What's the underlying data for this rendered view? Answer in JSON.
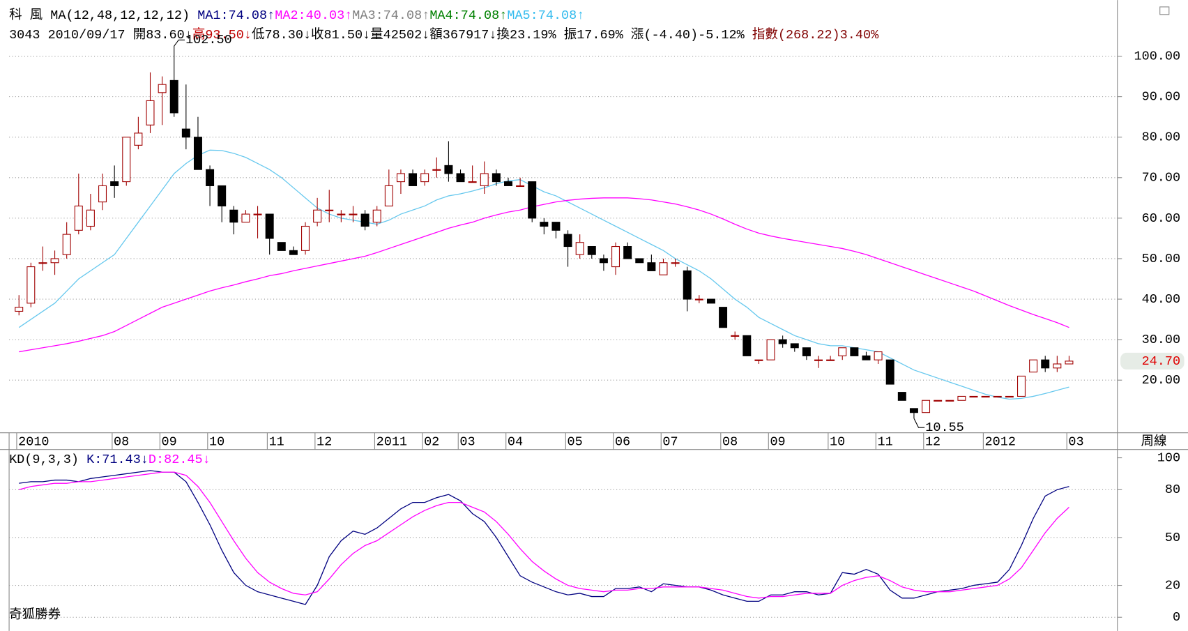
{
  "header": {
    "lines": [
      [
        {
          "text": "科  風 ",
          "color": "#000000"
        },
        {
          "text": "MA(12,48,12,12,12) ",
          "color": "#000000"
        },
        {
          "text": "MA1:74.08↑",
          "color": "#000080"
        },
        {
          "text": "MA2:40.03↑",
          "color": "#ff00ff"
        },
        {
          "text": "MA3:74.08↑",
          "color": "#808080"
        },
        {
          "text": "MA4:74.08↑",
          "color": "#008000"
        },
        {
          "text": "MA5:74.08↑",
          "color": "#33bbee"
        }
      ],
      [
        {
          "text": "3043 2010/09/17 開83.60↓",
          "color": "#000000"
        },
        {
          "text": "高93.50↓",
          "color": "#c00000"
        },
        {
          "text": "低78.30↓收81.50↓量42502↓額367917↓換23.19% 振17.69% 漲(-4.40)-5.12% ",
          "color": "#000000"
        },
        {
          "text": "指數(268.22)3.40%",
          "color": "#800000"
        }
      ]
    ]
  },
  "footer": "奇狐勝券",
  "chart_data": [
    {
      "type": "candlestick",
      "period_label": "周線",
      "up_color": "#a00000",
      "down_color": "#000000",
      "grid": true,
      "categories": [
        "2010",
        null,
        null,
        null,
        null,
        null,
        null,
        null,
        "08",
        null,
        null,
        null,
        "09",
        null,
        null,
        null,
        "10",
        null,
        null,
        null,
        null,
        "11",
        null,
        null,
        null,
        "12",
        null,
        null,
        null,
        null,
        "2011",
        null,
        null,
        null,
        "02",
        null,
        null,
        "03",
        null,
        null,
        null,
        "04",
        null,
        null,
        null,
        null,
        "05",
        null,
        null,
        null,
        "06",
        null,
        null,
        null,
        "07",
        null,
        null,
        null,
        null,
        "08",
        null,
        null,
        null,
        "09",
        null,
        null,
        null,
        null,
        "10",
        null,
        null,
        null,
        "11",
        null,
        null,
        null,
        "12",
        null,
        null,
        null,
        null,
        "2012",
        null,
        null,
        null,
        null,
        null,
        null,
        "03"
      ],
      "open": [
        37,
        39,
        49,
        49,
        51,
        57,
        58,
        64,
        69,
        69,
        78,
        83,
        91,
        94,
        82,
        80,
        72,
        68,
        62,
        59,
        61,
        61,
        54,
        52,
        52,
        59,
        62,
        61,
        61,
        61,
        59,
        63,
        69,
        71,
        69,
        72,
        73,
        71,
        69,
        68,
        71,
        69,
        68,
        69,
        59,
        59,
        56,
        51,
        53,
        50,
        48,
        53,
        50,
        49,
        46,
        49,
        47,
        40,
        40,
        38,
        31,
        31,
        25,
        25,
        30,
        29,
        28,
        25,
        25,
        26,
        28,
        26,
        25,
        25,
        17,
        13,
        12,
        15,
        15,
        15,
        16,
        16,
        16,
        16,
        16,
        22,
        25,
        23,
        24
      ],
      "high": [
        41,
        49,
        53,
        52,
        59,
        71,
        66,
        71,
        73,
        80,
        85,
        96,
        95,
        102.5,
        93,
        85,
        73,
        68,
        63,
        62,
        63,
        61,
        54,
        53,
        59,
        65,
        67,
        62,
        63,
        62,
        63,
        72,
        72,
        72,
        72,
        75,
        79,
        72,
        73,
        74,
        72,
        70,
        70,
        69,
        60,
        59,
        57,
        56,
        53,
        51,
        54,
        54,
        50,
        51,
        50,
        50,
        48,
        41,
        40,
        38,
        32,
        31,
        25,
        30,
        31,
        29,
        28,
        26,
        26,
        28,
        28,
        27,
        27,
        25,
        17,
        13,
        15,
        15,
        15,
        16,
        16,
        16,
        16,
        16,
        21,
        25,
        26,
        26,
        26
      ],
      "low": [
        36,
        38,
        47,
        46,
        50,
        56,
        57,
        62,
        65,
        68,
        77,
        81,
        83,
        85,
        77,
        72,
        63,
        59,
        56,
        59,
        55,
        51,
        52,
        51,
        51,
        58,
        59,
        59,
        59,
        57,
        58,
        63,
        66,
        68,
        68,
        70,
        69,
        69,
        69,
        66,
        68,
        68,
        68,
        59,
        56,
        55,
        48,
        50,
        50,
        47,
        46,
        50,
        49,
        47,
        46,
        48,
        37,
        39,
        39,
        33,
        30,
        26,
        24,
        25,
        28,
        27,
        25,
        23,
        25,
        25,
        26,
        25,
        24,
        19,
        15,
        10.55,
        12,
        15,
        15,
        15,
        16,
        16,
        16,
        16,
        16,
        22,
        22,
        22,
        24
      ],
      "close": [
        38,
        48,
        49,
        50,
        56,
        63,
        62,
        68,
        68,
        80,
        81,
        89,
        93,
        86,
        80,
        72,
        68,
        63,
        59,
        61,
        61,
        55,
        52,
        51,
        58,
        62,
        62,
        61,
        61,
        58,
        62,
        68,
        71,
        68,
        71,
        72,
        71,
        69,
        69,
        71,
        69,
        68,
        68,
        60,
        58,
        57,
        53,
        54,
        51,
        49,
        53,
        50,
        49,
        47,
        49,
        49,
        40,
        40,
        39,
        33,
        31,
        26,
        25,
        30,
        29,
        28,
        26,
        25,
        25,
        28,
        26,
        25,
        27,
        19,
        15,
        12,
        15,
        15,
        15,
        16,
        16,
        16,
        16,
        16,
        21,
        25,
        23,
        24,
        24.7
      ],
      "series": [
        {
          "color": "#66c8ee",
          "values": [
            33,
            35,
            37,
            39,
            42,
            45,
            47,
            49,
            51,
            55,
            59,
            63,
            67,
            71,
            73.5,
            75.5,
            76.8,
            76.7,
            76,
            75,
            73.5,
            72,
            70,
            67.5,
            65,
            62.5,
            61,
            60,
            59.5,
            59,
            58.5,
            59.5,
            61,
            62,
            63,
            64.5,
            65.5,
            66,
            66.7,
            67.5,
            68.5,
            69.2,
            69.5,
            68,
            66.5,
            65.5,
            64,
            62.5,
            61,
            59.5,
            58,
            56.5,
            55,
            53.5,
            52,
            50,
            48.5,
            47,
            45,
            42.5,
            40,
            38,
            35.5,
            34,
            32.5,
            31,
            30,
            29,
            28.5,
            28.5,
            28,
            27.5,
            27,
            25.5,
            24,
            22.5,
            21.5,
            20.5,
            19.5,
            18.5,
            17.5,
            16.5,
            15.8,
            15.3,
            15.5,
            16,
            16.7,
            17.5,
            18.3
          ]
        },
        {
          "color": "#ff00ff",
          "values": [
            27,
            27.5,
            28,
            28.5,
            29,
            29.6,
            30.3,
            31,
            32,
            33.5,
            35,
            36.5,
            38,
            39,
            40,
            41,
            42,
            42.8,
            43.5,
            44.3,
            45,
            45.8,
            46.3,
            47,
            47.6,
            48.2,
            48.8,
            49.4,
            50,
            50.6,
            51.5,
            52.5,
            53.5,
            54.5,
            55.5,
            56.5,
            57.5,
            58.3,
            59,
            60,
            60.8,
            61.5,
            62,
            62.8,
            63.4,
            64,
            64.4,
            64.7,
            64.9,
            65,
            65,
            65,
            64.8,
            64.5,
            64,
            63.5,
            62.8,
            62,
            61,
            59.8,
            58.5,
            57.3,
            56.3,
            55.6,
            55,
            54.5,
            54,
            53.5,
            53,
            52.5,
            51.8,
            51,
            50,
            49,
            48,
            47,
            46,
            45,
            44,
            43,
            42,
            40.8,
            39.6,
            38.4,
            37.3,
            36.2,
            35.2,
            34.2,
            33
          ]
        }
      ],
      "annotations": [
        {
          "index": 13,
          "value": 102.5,
          "label": "102.50"
        },
        {
          "index": 75,
          "value": 10.55,
          "label": "10.55"
        }
      ],
      "last_price": {
        "value": 24.7,
        "label": "24.70"
      },
      "ylim": [
        7,
        111.6
      ],
      "yticks": [
        {
          "value": 20,
          "label": "20.00"
        },
        {
          "value": 30,
          "label": "30.00"
        },
        {
          "value": 40,
          "label": "40.00"
        },
        {
          "value": 50,
          "label": "50.00"
        },
        {
          "value": 60,
          "label": "60.00"
        },
        {
          "value": 70,
          "label": "70.00"
        },
        {
          "value": 80,
          "label": "80.00"
        },
        {
          "value": 90,
          "label": "90.00"
        },
        {
          "value": 100,
          "label": "100.00"
        }
      ]
    },
    {
      "type": "line",
      "grid": true,
      "title_segments": [
        {
          "text": "KD(9,3,3) ",
          "color": "#000000"
        },
        {
          "text": "K:71.43↓",
          "color": "#000080"
        },
        {
          "text": "D:82.45↓",
          "color": "#ff00ff"
        }
      ],
      "series": [
        {
          "color": "#000080",
          "values": [
            84,
            85,
            85,
            86,
            86,
            85,
            87,
            88,
            89,
            90,
            91,
            92,
            91,
            91,
            85,
            72,
            58,
            42,
            28,
            20,
            16,
            14,
            12,
            10,
            8,
            20,
            38,
            48,
            54,
            52,
            56,
            62,
            68,
            72,
            72,
            75,
            77,
            73,
            65,
            60,
            50,
            38,
            26,
            22,
            19,
            16,
            14,
            15,
            13,
            13,
            18,
            18,
            19,
            16,
            21,
            20,
            19,
            19,
            17,
            14,
            12,
            10,
            10,
            14,
            14,
            16,
            16,
            14,
            15,
            28,
            27,
            30,
            27,
            17,
            12,
            12,
            14,
            16,
            17,
            18,
            20,
            21,
            22,
            30,
            45,
            62,
            76,
            80,
            82
          ]
        },
        {
          "color": "#ff00ff",
          "values": [
            80,
            82,
            83,
            84,
            84,
            85,
            85,
            86,
            87,
            88,
            89,
            90,
            91,
            91,
            89,
            82,
            72,
            60,
            48,
            37,
            28,
            22,
            18,
            15,
            14,
            16,
            24,
            33,
            40,
            45,
            48,
            53,
            58,
            63,
            67,
            70,
            72,
            72,
            69,
            66,
            60,
            52,
            43,
            35,
            29,
            24,
            20,
            18,
            17,
            16,
            17,
            17,
            18,
            18,
            19,
            19,
            19,
            19,
            18,
            17,
            15,
            13,
            12,
            13,
            13,
            14,
            15,
            15,
            15,
            20,
            23,
            25,
            26,
            23,
            19,
            17,
            16,
            16,
            16,
            17,
            18,
            19,
            20,
            24,
            31,
            42,
            53,
            62,
            69
          ]
        }
      ],
      "ylim": [
        -4.3,
        105.2
      ],
      "yticks": [
        0,
        20,
        50,
        80,
        100
      ]
    }
  ]
}
